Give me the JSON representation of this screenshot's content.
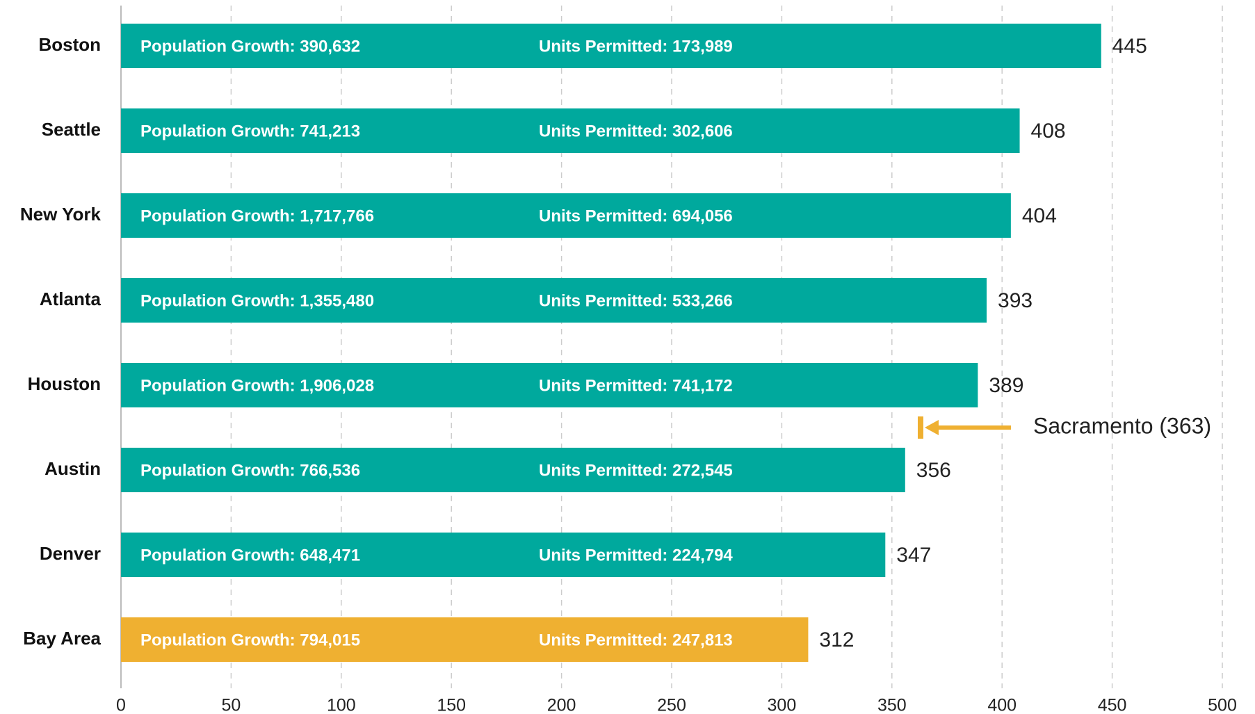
{
  "chart_data": {
    "type": "hbar",
    "categories": [
      "Boston",
      "Seattle",
      "New York",
      "Atlanta",
      "Houston",
      "Austin",
      "Denver",
      "Bay Area"
    ],
    "values": [
      445,
      408,
      404,
      393,
      389,
      356,
      347,
      312
    ],
    "colors": [
      "#00a99d",
      "#00a99d",
      "#00a99d",
      "#00a99d",
      "#00a99d",
      "#00a99d",
      "#00a99d",
      "#efb031"
    ],
    "population_labels": [
      "Population Growth: 390,632",
      "Population Growth: 741,213",
      "Population Growth: 1,717,766",
      "Population Growth: 1,355,480",
      "Population Growth: 1,906,028",
      "Population Growth: 766,536",
      "Population Growth: 648,471",
      "Population Growth: 794,015"
    ],
    "units_labels": [
      "Units Permitted: 173,989",
      "Units Permitted: 302,606",
      "Units Permitted: 694,056",
      "Units Permitted: 533,266",
      "Units Permitted: 741,172",
      "Units Permitted: 272,545",
      "Units Permitted: 224,794",
      "Units Permitted: 247,813"
    ],
    "xlim": [
      0,
      500
    ],
    "xticks": [
      0,
      50,
      100,
      150,
      200,
      250,
      300,
      350,
      400,
      450,
      500
    ],
    "grid": true,
    "annotation": {
      "label": "Sacramento (363)",
      "value": 363,
      "color": "#efb031"
    }
  }
}
